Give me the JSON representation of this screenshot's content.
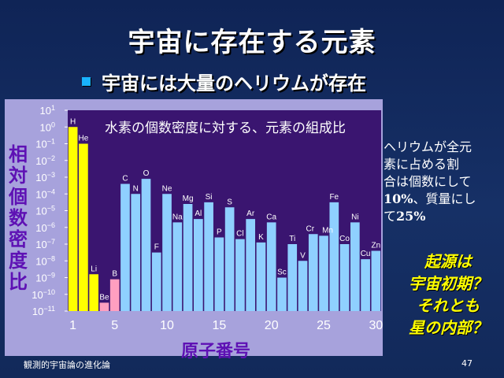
{
  "slide": {
    "title": "宇宙に存在する元素",
    "subtitle": "宇宙には大量のヘリウムが存在",
    "footer": "観測的宇宙論の進化論",
    "page_number": "47"
  },
  "side_note": {
    "line1": "ヘリウムが全元",
    "line2": "素に占める割",
    "line3": "合は個数にして",
    "line4_num": "10%",
    "line4_text": "、質量にし",
    "line5_pre": "て",
    "line5_num": "25%"
  },
  "question": {
    "line1": "起源は",
    "line2": "宇宙初期？",
    "line3": "それとも",
    "line4": "星の内部？"
  },
  "colors": {
    "plot_background": "#3a1570",
    "panel_background": "#a7a2dc",
    "bar_yellow": "#ffff00",
    "bar_pink": "#ff9fc0",
    "bar_blue": "#8fd0ff",
    "axis_text": "#5e11b4"
  },
  "chart_data": {
    "type": "bar",
    "title": "水素の個数密度に対する、元素の組成比",
    "xlabel": "原子番号",
    "ylabel": "相対個数密度比",
    "yscale": "log",
    "ylim_exponent": [
      -11,
      1
    ],
    "y_tick_exponents": [
      1,
      0,
      -1,
      -2,
      -3,
      -4,
      -5,
      -6,
      -7,
      -8,
      -9,
      -10,
      -11
    ],
    "x_ticks": [
      1,
      5,
      10,
      15,
      20,
      25,
      30
    ],
    "elements": [
      {
        "z": 1,
        "symbol": "H",
        "log10": 0.0,
        "color": "yellow"
      },
      {
        "z": 2,
        "symbol": "He",
        "log10": -1.0,
        "color": "yellow"
      },
      {
        "z": 3,
        "symbol": "Li",
        "log10": -8.8,
        "color": "yellow"
      },
      {
        "z": 4,
        "symbol": "Be",
        "log10": -10.5,
        "color": "pink"
      },
      {
        "z": 5,
        "symbol": "B",
        "log10": -9.1,
        "color": "pink"
      },
      {
        "z": 6,
        "symbol": "C",
        "log10": -3.4,
        "color": "blue"
      },
      {
        "z": 7,
        "symbol": "N",
        "log10": -4.0,
        "color": "blue"
      },
      {
        "z": 8,
        "symbol": "O",
        "log10": -3.1,
        "color": "blue"
      },
      {
        "z": 9,
        "symbol": "F",
        "log10": -7.5,
        "color": "blue"
      },
      {
        "z": 10,
        "symbol": "Ne",
        "log10": -4.0,
        "color": "blue"
      },
      {
        "z": 11,
        "symbol": "Na",
        "log10": -5.7,
        "color": "blue"
      },
      {
        "z": 12,
        "symbol": "Mg",
        "log10": -4.6,
        "color": "blue"
      },
      {
        "z": 13,
        "symbol": "Al",
        "log10": -5.5,
        "color": "blue"
      },
      {
        "z": 14,
        "symbol": "Si",
        "log10": -4.5,
        "color": "blue"
      },
      {
        "z": 15,
        "symbol": "P",
        "log10": -6.6,
        "color": "blue"
      },
      {
        "z": 16,
        "symbol": "S",
        "log10": -4.8,
        "color": "blue"
      },
      {
        "z": 17,
        "symbol": "Cl",
        "log10": -6.7,
        "color": "blue"
      },
      {
        "z": 18,
        "symbol": "Ar",
        "log10": -5.5,
        "color": "blue"
      },
      {
        "z": 19,
        "symbol": "K",
        "log10": -6.9,
        "color": "blue"
      },
      {
        "z": 20,
        "symbol": "Ca",
        "log10": -5.7,
        "color": "blue"
      },
      {
        "z": 21,
        "symbol": "Sc",
        "log10": -9.0,
        "color": "blue"
      },
      {
        "z": 22,
        "symbol": "Ti",
        "log10": -7.0,
        "color": "blue"
      },
      {
        "z": 23,
        "symbol": "V",
        "log10": -8.0,
        "color": "blue"
      },
      {
        "z": 24,
        "symbol": "Cr",
        "log10": -6.4,
        "color": "blue"
      },
      {
        "z": 25,
        "symbol": "Mn",
        "log10": -6.5,
        "color": "blue"
      },
      {
        "z": 26,
        "symbol": "Fe",
        "log10": -4.5,
        "color": "blue"
      },
      {
        "z": 27,
        "symbol": "Co",
        "log10": -7.0,
        "color": "blue"
      },
      {
        "z": 28,
        "symbol": "Ni",
        "log10": -5.7,
        "color": "blue"
      },
      {
        "z": 29,
        "symbol": "Cu",
        "log10": -7.9,
        "color": "blue"
      },
      {
        "z": 30,
        "symbol": "Zn",
        "log10": -7.4,
        "color": "blue"
      }
    ]
  }
}
